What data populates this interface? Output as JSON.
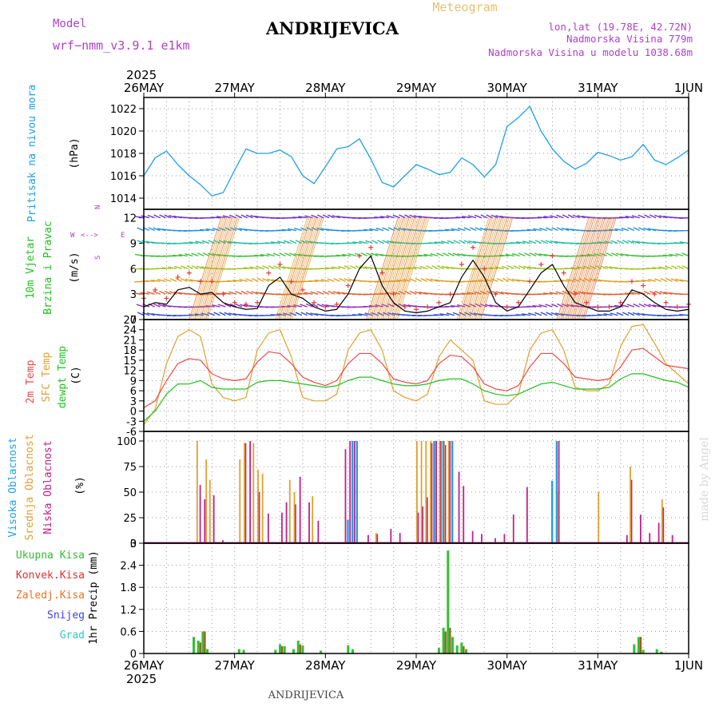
{
  "header": {
    "model_label": "Model",
    "model_name": "wrf−nmm_v3.9.1  e1km",
    "location": "ANDRIJEVICA",
    "chart_type_label": "Meteogram",
    "lonlat": "lon,lat (19.78E, 42.72N)",
    "elevation": "Nadmorska Visina 779m",
    "model_elevation": "Nadmorska Visina u modelu 1038.68m"
  },
  "footer": {
    "location": "ANDRIJEVICA",
    "credit": "made by Angel"
  },
  "colors": {
    "pressure": "#1ea0e6",
    "wind_speed": "#000000",
    "gust_marker": "#e63c3c",
    "temp_2m": "#e84a4a",
    "temp_sfc": "#e0a030",
    "dewpoint": "#22c022",
    "cloud_high": "#22a0e0",
    "cloud_mid": "#e0a030",
    "cloud_low": "#c0208a",
    "precip_total": "#30c030",
    "precip_conv": "#e03030",
    "precip_grid": "#f07020",
    "snow": "#4040e0",
    "graupel": "#30c8c8",
    "purple_text": "#b040c8",
    "gold_text": "#e8c070"
  },
  "chart_data": [
    {
      "type": "line",
      "title": "Pritisak na nivou mora",
      "ylabel": "(hPa)",
      "ylim": [
        1013,
        1023
      ],
      "yticks": [
        1014,
        1016,
        1018,
        1020,
        1022
      ],
      "x_unit": "days since 26MAY 2025 00UTC",
      "x": [
        0,
        0.125,
        0.25,
        0.375,
        0.5,
        0.625,
        0.75,
        0.875,
        1.0,
        1.125,
        1.25,
        1.375,
        1.5,
        1.625,
        1.75,
        1.875,
        2.0,
        2.125,
        2.25,
        2.375,
        2.5,
        2.625,
        2.75,
        2.875,
        3.0,
        3.125,
        3.25,
        3.375,
        3.5,
        3.625,
        3.75,
        3.875,
        4.0,
        4.125,
        4.25,
        4.375,
        4.5,
        4.625,
        4.75,
        4.875,
        5.0,
        5.125,
        5.25,
        5.375,
        5.5,
        5.625,
        5.75,
        5.875,
        6.0
      ],
      "series": [
        {
          "name": "pressure",
          "values": [
            1016.0,
            1017.6,
            1018.2,
            1017.0,
            1016.0,
            1015.2,
            1014.2,
            1014.5,
            1016.5,
            1018.4,
            1018.0,
            1018.0,
            1018.3,
            1017.7,
            1016.0,
            1015.3,
            1016.8,
            1018.4,
            1018.6,
            1019.3,
            1017.5,
            1015.4,
            1015.0,
            1016.0,
            1017.0,
            1016.6,
            1016.1,
            1016.3,
            1017.6,
            1017.0,
            1015.9,
            1017.0,
            1020.4,
            1021.2,
            1022.2,
            1020.0,
            1018.4,
            1017.3,
            1016.6,
            1017.1,
            1018.1,
            1017.8,
            1017.4,
            1017.7,
            1018.8,
            1017.4,
            1017.0,
            1017.6,
            1018.3
          ]
        }
      ]
    },
    {
      "type": "line",
      "title": "10m Vjetar Brzina i Pravac",
      "ylabel": "(m/s)",
      "direction_legend": [
        "N",
        "S",
        "W",
        "E"
      ],
      "ylim": [
        0,
        13
      ],
      "yticks": [
        0,
        3,
        6,
        9,
        12
      ],
      "x_unit": "days since 26MAY 2025 00UTC",
      "x": [
        0,
        0.125,
        0.25,
        0.375,
        0.5,
        0.625,
        0.75,
        0.875,
        1.0,
        1.125,
        1.25,
        1.375,
        1.5,
        1.625,
        1.75,
        1.875,
        2.0,
        2.125,
        2.25,
        2.375,
        2.5,
        2.625,
        2.75,
        2.875,
        3.0,
        3.125,
        3.25,
        3.375,
        3.5,
        3.625,
        3.75,
        3.875,
        4.0,
        4.125,
        4.25,
        4.375,
        4.5,
        4.625,
        4.75,
        4.875,
        5.0,
        5.125,
        5.25,
        5.375,
        5.5,
        5.625,
        5.75,
        5.875,
        6.0
      ],
      "series": [
        {
          "name": "wind_speed",
          "values": [
            1.5,
            2.0,
            1.8,
            3.5,
            3.8,
            3.0,
            3.2,
            2.0,
            1.5,
            1.2,
            1.3,
            4.0,
            5.0,
            3.0,
            2.5,
            1.5,
            1.0,
            1.2,
            3.0,
            6.0,
            7.5,
            4.0,
            2.0,
            1.0,
            0.8,
            1.0,
            1.5,
            2.0,
            5.0,
            7.0,
            5.0,
            2.0,
            1.0,
            1.5,
            3.5,
            5.5,
            6.5,
            4.0,
            2.0,
            1.5,
            1.0,
            1.0,
            1.5,
            3.5,
            3.0,
            2.0,
            1.2,
            1.0,
            1.2
          ]
        },
        {
          "name": "wind_gust",
          "values": [
            2.5,
            3.5,
            2.5,
            5.0,
            5.5,
            4.5,
            4.5,
            3.0,
            2.0,
            1.8,
            2.0,
            5.5,
            6.5,
            4.5,
            3.5,
            2.0,
            1.5,
            1.8,
            4.0,
            7.5,
            8.5,
            5.5,
            3.0,
            1.5,
            1.2,
            1.5,
            2.0,
            3.0,
            6.5,
            8.5,
            6.0,
            3.0,
            1.5,
            2.0,
            4.5,
            6.5,
            7.5,
            5.5,
            3.0,
            2.0,
            1.5,
            1.5,
            2.0,
            4.5,
            4.0,
            3.0,
            2.0,
            1.5,
            1.8
          ]
        }
      ]
    },
    {
      "type": "line",
      "title": "2m Temp / SFC Temp / dewpt Temp",
      "ylabel": "(C)",
      "ylim": [
        -6,
        27
      ],
      "yticks": [
        -6,
        -3,
        0,
        3,
        6,
        9,
        12,
        15,
        18,
        21,
        24,
        27
      ],
      "x_unit": "days since 26MAY 2025 00UTC",
      "x": [
        0,
        0.125,
        0.25,
        0.375,
        0.5,
        0.625,
        0.75,
        0.875,
        1.0,
        1.125,
        1.25,
        1.375,
        1.5,
        1.625,
        1.75,
        1.875,
        2.0,
        2.125,
        2.25,
        2.375,
        2.5,
        2.625,
        2.75,
        2.875,
        3.0,
        3.125,
        3.25,
        3.375,
        3.5,
        3.625,
        3.75,
        3.875,
        4.0,
        4.125,
        4.25,
        4.375,
        4.5,
        4.625,
        4.75,
        4.875,
        5.0,
        5.125,
        5.25,
        5.375,
        5.5,
        5.625,
        5.75,
        5.875,
        6.0
      ],
      "series": [
        {
          "name": "2m Temp",
          "values": [
            1.0,
            3.0,
            9.0,
            14.0,
            15.5,
            15.0,
            11.0,
            9.5,
            9.0,
            9.5,
            14.5,
            17.5,
            17.0,
            14.0,
            10.0,
            8.5,
            7.5,
            9.0,
            14.0,
            17.0,
            17.0,
            14.0,
            9.5,
            8.5,
            8.0,
            9.0,
            14.0,
            16.5,
            16.0,
            13.0,
            8.0,
            6.5,
            6.0,
            7.5,
            13.0,
            17.0,
            17.0,
            14.0,
            10.0,
            9.5,
            9.0,
            9.5,
            13.0,
            18.0,
            18.5,
            16.0,
            13.5,
            13.0,
            12.5
          ]
        },
        {
          "name": "SFC Temp",
          "values": [
            -4.0,
            0.5,
            14.0,
            22.0,
            24.0,
            22.0,
            8.0,
            4.0,
            3.0,
            4.0,
            18.0,
            23.0,
            24.0,
            16.0,
            4.0,
            3.0,
            3.0,
            5.0,
            18.0,
            23.0,
            24.0,
            18.0,
            6.0,
            4.0,
            3.0,
            5.0,
            16.0,
            21.0,
            18.0,
            15.0,
            3.0,
            2.0,
            2.0,
            5.0,
            18.0,
            23.0,
            24.0,
            18.0,
            7.0,
            6.0,
            6.0,
            8.0,
            19.0,
            25.0,
            25.5,
            20.0,
            14.0,
            11.0,
            8.0
          ]
        },
        {
          "name": "dewpt Temp",
          "values": [
            -3.0,
            0.0,
            5.0,
            8.0,
            8.0,
            9.0,
            7.0,
            6.5,
            6.5,
            6.5,
            8.5,
            9.0,
            9.0,
            8.5,
            8.0,
            7.5,
            7.0,
            7.5,
            9.0,
            10.0,
            10.0,
            9.0,
            8.0,
            7.5,
            7.5,
            8.0,
            9.0,
            9.5,
            9.5,
            8.0,
            6.0,
            5.0,
            4.5,
            5.0,
            6.5,
            8.0,
            8.5,
            7.5,
            6.5,
            6.5,
            6.5,
            7.0,
            9.5,
            11.0,
            11.0,
            10.0,
            9.0,
            8.5,
            7.0
          ]
        }
      ]
    },
    {
      "type": "bar",
      "title": "Visoka / Srednja / Niska Oblacnost",
      "ylabel": "(%)",
      "ylim": [
        0,
        100
      ],
      "yticks": [
        0,
        25,
        50,
        75,
        100
      ],
      "x_unit": "days since 26MAY 2025 00UTC",
      "series": [
        {
          "name": "Niska Oblacnost",
          "x": [
            0.6,
            0.65,
            0.75,
            0.85,
            1.1,
            1.15,
            1.25,
            1.35,
            1.5,
            1.55,
            1.65,
            1.7,
            1.8,
            1.9,
            2.2,
            2.25,
            2.3,
            2.45,
            2.55,
            2.7,
            2.8,
            3.0,
            3.05,
            3.1,
            3.15,
            3.2,
            3.25,
            3.3,
            3.35,
            3.45,
            3.5,
            3.6,
            3.7,
            3.85,
            3.95,
            4.05,
            4.2,
            4.55,
            5.3,
            5.35,
            5.45,
            5.55,
            5.65,
            5.7,
            5.8
          ],
          "values": [
            57,
            43,
            47,
            3,
            98,
            100,
            50,
            29,
            30,
            40,
            38,
            65,
            40,
            22,
            92,
            100,
            100,
            8,
            9,
            14,
            10,
            30,
            36,
            45,
            98,
            100,
            100,
            96,
            100,
            70,
            56,
            12,
            9,
            5,
            9,
            28,
            55,
            100,
            8,
            62,
            28,
            10,
            20,
            35,
            8
          ]
        },
        {
          "name": "Srednja Oblacnost",
          "x": [
            0.58,
            0.68,
            0.72,
            1.05,
            1.1,
            1.2,
            1.25,
            1.3,
            1.6,
            1.65,
            1.85,
            2.55,
            3.0,
            3.05,
            3.1,
            3.15,
            3.2,
            3.25,
            3.3,
            3.35,
            4.55,
            5.0,
            5.35,
            5.7
          ],
          "values": [
            100,
            82,
            62,
            82,
            98,
            98,
            72,
            68,
            62,
            50,
            46,
            10,
            100,
            100,
            100,
            100,
            100,
            100,
            100,
            100,
            50,
            50,
            75,
            43
          ]
        },
        {
          "name": "Visoka Oblacnost",
          "x": [
            2.25,
            2.3,
            2.35,
            3.2,
            3.3,
            3.4,
            4.5,
            4.55
          ],
          "values": [
            23,
            100,
            100,
            100,
            100,
            100,
            61,
            100
          ]
        }
      ]
    },
    {
      "type": "bar",
      "title": "1hr Precip",
      "ylabel": "(mm)",
      "ylim": [
        0,
        3
      ],
      "yticks": [
        0,
        0.6,
        1.2,
        1.8,
        2.4,
        3
      ],
      "x_unit": "days since 26MAY 2025 00UTC",
      "series": [
        {
          "name": "Ukupna Kisa",
          "x": [
            0.55,
            0.6,
            0.65,
            0.7,
            1.05,
            1.1,
            1.45,
            1.5,
            1.55,
            1.65,
            1.7,
            1.75,
            1.95,
            2.25,
            2.3,
            3.25,
            3.3,
            3.35,
            3.4,
            3.45,
            3.5,
            3.55,
            5.4,
            5.45,
            5.5,
            5.65,
            5.7
          ],
          "values": [
            0.45,
            0.35,
            0.6,
            0.12,
            0.12,
            0.1,
            0.1,
            0.25,
            0.2,
            0.12,
            0.35,
            0.22,
            0.08,
            0.22,
            0.12,
            0.15,
            0.7,
            2.8,
            0.45,
            0.22,
            0.3,
            0.12,
            0.25,
            0.45,
            0.1,
            0.12,
            0.05
          ]
        },
        {
          "name": "Konvek.Kisa",
          "x": [
            0.6,
            0.65,
            1.5,
            1.7,
            3.3,
            3.35,
            3.5,
            5.45
          ],
          "values": [
            0.3,
            0.6,
            0.2,
            0.25,
            0.6,
            0.7,
            0.2,
            0.45
          ]
        },
        {
          "name": "Zaledj.Kisa",
          "x": [],
          "values": []
        },
        {
          "name": "Snijeg",
          "x": [],
          "values": []
        },
        {
          "name": "Grad",
          "x": [],
          "values": []
        }
      ]
    }
  ],
  "x_axis": {
    "top_year": "2025",
    "bottom_year": "2025",
    "day_labels": [
      "26MAY",
      "27MAY",
      "28MAY",
      "29MAY",
      "30MAY",
      "31MAY",
      "1JUN"
    ]
  },
  "panel_labels": {
    "pressure": [
      "Pritisak na nivou mora"
    ],
    "pressure_unit": "(hPa)",
    "wind": [
      "10m Vjetar",
      "Brzina i Pravac"
    ],
    "wind_unit": "(m/s)",
    "temp_2m": "2m Temp",
    "temp_sfc": "SFC Temp",
    "temp_dew": "dewpt Temp",
    "temp_unit": "(C)",
    "cloud_high": "Visoka Oblacnost",
    "cloud_mid": "Srednja Oblacnost",
    "cloud_low": "Niska Oblacnost",
    "cloud_unit": "(%)",
    "precip_unit": "1hr Precip (mm)",
    "precip_legend": [
      "Ukupna  Kisa",
      "Konvek.Kisa",
      "Zaledj.Kisa",
      "Snijeg",
      "Grad"
    ]
  }
}
